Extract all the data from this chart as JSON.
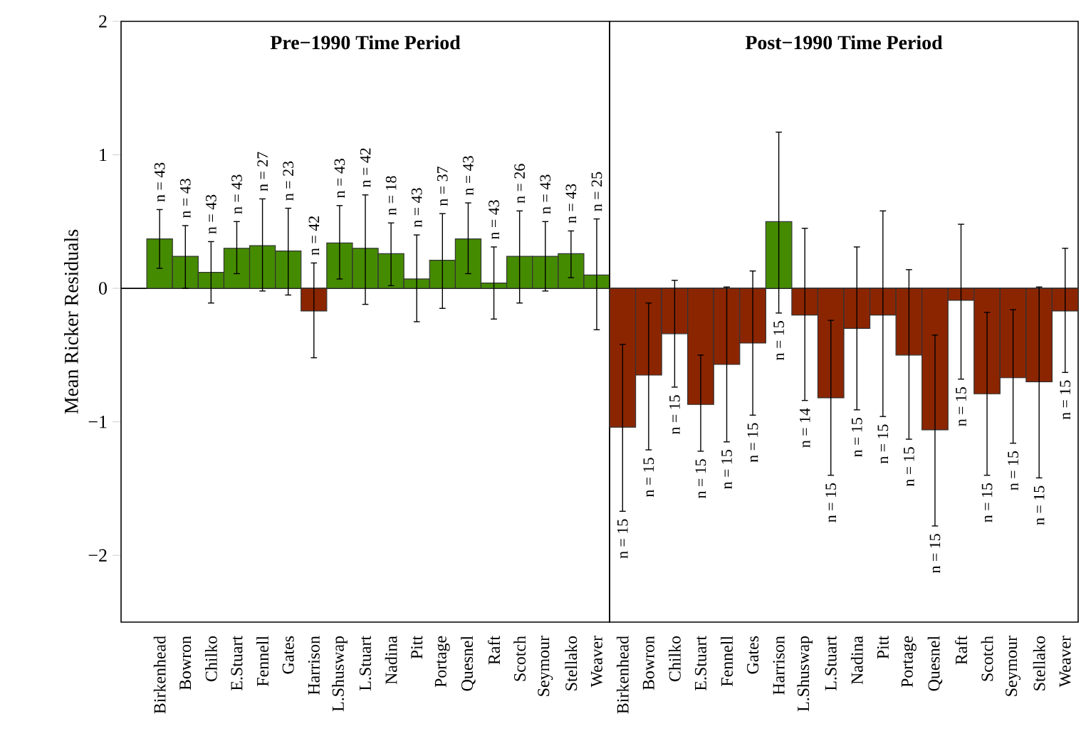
{
  "chart_data": [
    {
      "type": "bar",
      "title": "Pre−1990 Time Period",
      "ylabel": "Mean Ricker Residuals",
      "categories": [
        "Birkenhead",
        "Bowron",
        "Chilko",
        "E.Stuart",
        "Fennell",
        "Gates",
        "Harrison",
        "L.Shuswap",
        "L.Stuart",
        "Nadina",
        "Pitt",
        "Portage",
        "Quesnel",
        "Raft",
        "Scotch",
        "Seymour",
        "Stellako",
        "Weaver"
      ],
      "values": [
        0.37,
        0.24,
        0.12,
        0.3,
        0.32,
        0.28,
        -0.17,
        0.34,
        0.3,
        0.26,
        0.07,
        0.21,
        0.37,
        0.04,
        0.24,
        0.24,
        0.26,
        0.1
      ],
      "colors": [
        "#458b00",
        "#458b00",
        "#458b00",
        "#458b00",
        "#458b00",
        "#458b00",
        "#8b2500",
        "#458b00",
        "#458b00",
        "#458b00",
        "#458b00",
        "#458b00",
        "#458b00",
        "#458b00",
        "#458b00",
        "#458b00",
        "#458b00",
        "#458b00"
      ],
      "errors": [
        [
          0.15,
          0.59
        ],
        [
          0.0,
          0.47
        ],
        [
          -0.11,
          0.35
        ],
        [
          0.11,
          0.5
        ],
        [
          -0.02,
          0.67
        ],
        [
          -0.05,
          0.6
        ],
        [
          -0.52,
          0.19
        ],
        [
          0.07,
          0.62
        ],
        [
          -0.12,
          0.7
        ],
        [
          0.02,
          0.49
        ],
        [
          -0.25,
          0.4
        ],
        [
          -0.15,
          0.56
        ],
        [
          0.11,
          0.64
        ],
        [
          -0.23,
          0.31
        ],
        [
          -0.11,
          0.58
        ],
        [
          -0.02,
          0.5
        ],
        [
          0.08,
          0.43
        ],
        [
          -0.31,
          0.52
        ]
      ],
      "annotations": [
        {
          "text": "n = 43",
          "x": "Birkenhead",
          "y": 0.59
        },
        {
          "text": "n = 43",
          "x": "Bowron",
          "y": 0.47
        },
        {
          "text": "n = 43",
          "x": "Chilko",
          "y": 0.35
        },
        {
          "text": "n = 43",
          "x": "E.Stuart",
          "y": 0.5
        },
        {
          "text": "n = 27",
          "x": "Fennell",
          "y": 0.67
        },
        {
          "text": "n = 23",
          "x": "Gates",
          "y": 0.6
        },
        {
          "text": "n = 42",
          "x": "Harrison",
          "y": 0.19
        },
        {
          "text": "n = 43",
          "x": "L.Shuswap",
          "y": 0.62
        },
        {
          "text": "n = 42",
          "x": "L.Stuart",
          "y": 0.7
        },
        {
          "text": "n = 18",
          "x": "Nadina",
          "y": 0.49
        },
        {
          "text": "n = 43",
          "x": "Pitt",
          "y": 0.4
        },
        {
          "text": "n = 37",
          "x": "Portage",
          "y": 0.56
        },
        {
          "text": "n = 43",
          "x": "Quesnel",
          "y": 0.64
        },
        {
          "text": "n = 43",
          "x": "Raft",
          "y": 0.31
        },
        {
          "text": "n = 26",
          "x": "Scotch",
          "y": 0.58
        },
        {
          "text": "n = 43",
          "x": "Seymour",
          "y": 0.5
        },
        {
          "text": "n = 43",
          "x": "Stellako",
          "y": 0.43
        },
        {
          "text": "n = 25",
          "x": "Weaver",
          "y": 0.52
        }
      ],
      "ref_lines": [
        {
          "axis": "y",
          "value": 0
        }
      ],
      "ylim": [
        -2.5,
        2
      ],
      "yticks": [
        {
          "value": -2,
          "label": "−2"
        },
        {
          "value": -1,
          "label": "−1"
        },
        0,
        1,
        2
      ]
    },
    {
      "type": "bar",
      "title": "Post−1990 Time Period",
      "categories": [
        "Birkenhead",
        "Bowron",
        "Chilko",
        "E.Stuart",
        "Fennell",
        "Gates",
        "Harrison",
        "L.Shuswap",
        "L.Stuart",
        "Nadina",
        "Pitt",
        "Portage",
        "Quesnel",
        "Raft",
        "Scotch",
        "Seymour",
        "Stellako",
        "Weaver"
      ],
      "values": [
        -1.04,
        -0.65,
        -0.34,
        -0.87,
        -0.57,
        -0.41,
        0.5,
        -0.2,
        -0.82,
        -0.3,
        -0.2,
        -0.5,
        -1.06,
        -0.09,
        -0.79,
        -0.67,
        -0.7,
        -0.17
      ],
      "colors": [
        "#8b2500",
        "#8b2500",
        "#8b2500",
        "#8b2500",
        "#8b2500",
        "#8b2500",
        "#458b00",
        "#8b2500",
        "#8b2500",
        "#8b2500",
        "#8b2500",
        "#8b2500",
        "#8b2500",
        "#8b2500",
        "#8b2500",
        "#8b2500",
        "#8b2500",
        "#8b2500"
      ],
      "errors": [
        [
          -1.67,
          -0.42
        ],
        [
          -1.21,
          -0.11
        ],
        [
          -0.74,
          0.06
        ],
        [
          -1.22,
          -0.5
        ],
        [
          -1.15,
          0.01
        ],
        [
          -0.95,
          0.13
        ],
        [
          -0.185,
          1.17
        ],
        [
          -0.84,
          0.45
        ],
        [
          -1.4,
          -0.24
        ],
        [
          -0.91,
          0.31
        ],
        [
          -0.96,
          0.58
        ],
        [
          -1.13,
          0.14
        ],
        [
          -1.78,
          -0.35
        ],
        [
          -0.68,
          0.48
        ],
        [
          -1.4,
          -0.18
        ],
        [
          -1.16,
          -0.16
        ],
        [
          -1.42,
          0.01
        ],
        [
          -0.63,
          0.3
        ]
      ],
      "annotations": [
        {
          "text": "n = 15",
          "x": "Birkenhead",
          "y": -1.67
        },
        {
          "text": "n = 15",
          "x": "Bowron",
          "y": -1.21
        },
        {
          "text": "n = 15",
          "x": "Chilko",
          "y": -0.74
        },
        {
          "text": "n = 15",
          "x": "E.Stuart",
          "y": -1.22
        },
        {
          "text": "n = 15",
          "x": "Fennell",
          "y": -1.15
        },
        {
          "text": "n = 15",
          "x": "Gates",
          "y": -0.95
        },
        {
          "text": "n = 15",
          "x": "Harrison",
          "y": -0.185
        },
        {
          "text": "n = 14",
          "x": "L.Shuswap",
          "y": -0.84
        },
        {
          "text": "n = 15",
          "x": "L.Stuart",
          "y": -1.4
        },
        {
          "text": "n = 15",
          "x": "Nadina",
          "y": -0.91
        },
        {
          "text": "n = 15",
          "x": "Pitt",
          "y": -0.96
        },
        {
          "text": "n = 15",
          "x": "Portage",
          "y": -1.13
        },
        {
          "text": "n = 15",
          "x": "Quesnel",
          "y": -1.78
        },
        {
          "text": "n = 15",
          "x": "Raft",
          "y": -0.68
        },
        {
          "text": "n = 15",
          "x": "Scotch",
          "y": -1.4
        },
        {
          "text": "n = 15",
          "x": "Seymour",
          "y": -1.16
        },
        {
          "text": "n = 15",
          "x": "Stellako",
          "y": -1.42
        },
        {
          "text": "n = 15",
          "x": "Weaver",
          "y": -0.63
        }
      ],
      "ref_lines": [
        {
          "axis": "y",
          "value": 0
        }
      ],
      "ylim": [
        -2.5,
        2
      ],
      "yticks": [
        -2,
        -1,
        0,
        1,
        2
      ],
      "tick_labels": "x"
    }
  ]
}
